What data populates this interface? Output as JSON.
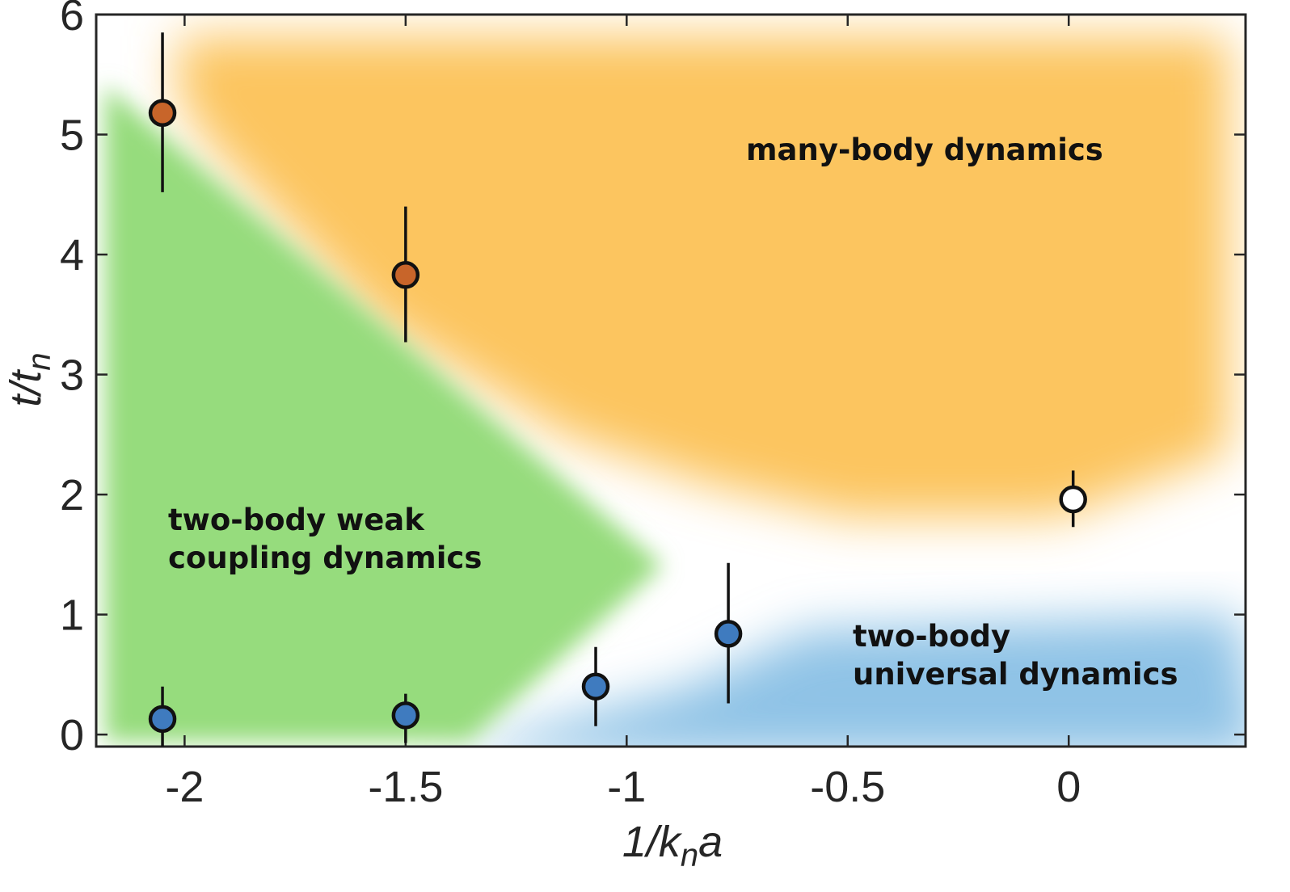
{
  "chart_data": {
    "type": "scatter",
    "title": "",
    "xlabel": "1/k",
    "xlabel_sub": "n",
    "xlabel_suffix": "a",
    "ylabel": "t/t",
    "ylabel_sub": "n",
    "xlim": [
      -2.2,
      0.4
    ],
    "ylim": [
      -0.1,
      6.0
    ],
    "xticks": [
      -2,
      -1.5,
      -1,
      -0.5,
      0
    ],
    "xtick_labels": [
      "-2",
      "-1.5",
      "-1",
      "-0.5",
      "0"
    ],
    "yticks": [
      0,
      1,
      2,
      3,
      4,
      5,
      6
    ],
    "ytick_labels": [
      "0",
      "1",
      "2",
      "3",
      "4",
      "5",
      "6"
    ],
    "grid": false,
    "regions": [
      {
        "name": "many-body",
        "lines": [
          "many-body dynamics"
        ],
        "color": "#fcc55f"
      },
      {
        "name": "two-body-weak",
        "lines": [
          "two-body weak",
          "coupling dynamics"
        ],
        "color": "#96dc7d"
      },
      {
        "name": "two-body-universal",
        "lines": [
          "two-body",
          "universal dynamics"
        ],
        "color": "#8fc3e6"
      }
    ],
    "series": [
      {
        "name": "many-body points",
        "color": "#c8652a",
        "points": [
          {
            "x": -2.05,
            "y": 5.18,
            "yerr_low": 4.52,
            "yerr_high": 5.85
          },
          {
            "x": -1.5,
            "y": 3.83,
            "yerr_low": 3.27,
            "yerr_high": 4.4
          }
        ]
      },
      {
        "name": "two-body points",
        "color": "#3f7bbf",
        "points": [
          {
            "x": -2.05,
            "y": 0.13,
            "yerr_low": -0.1,
            "yerr_high": 0.4
          },
          {
            "x": -1.5,
            "y": 0.16,
            "yerr_low": -0.07,
            "yerr_high": 0.34
          },
          {
            "x": -1.07,
            "y": 0.4,
            "yerr_low": 0.07,
            "yerr_high": 0.73
          },
          {
            "x": -0.77,
            "y": 0.84,
            "yerr_low": 0.26,
            "yerr_high": 1.43
          }
        ]
      },
      {
        "name": "crossover point",
        "color": "#ffffff",
        "points": [
          {
            "x": 0.01,
            "y": 1.96,
            "yerr_low": 1.73,
            "yerr_high": 2.2
          }
        ]
      }
    ]
  }
}
